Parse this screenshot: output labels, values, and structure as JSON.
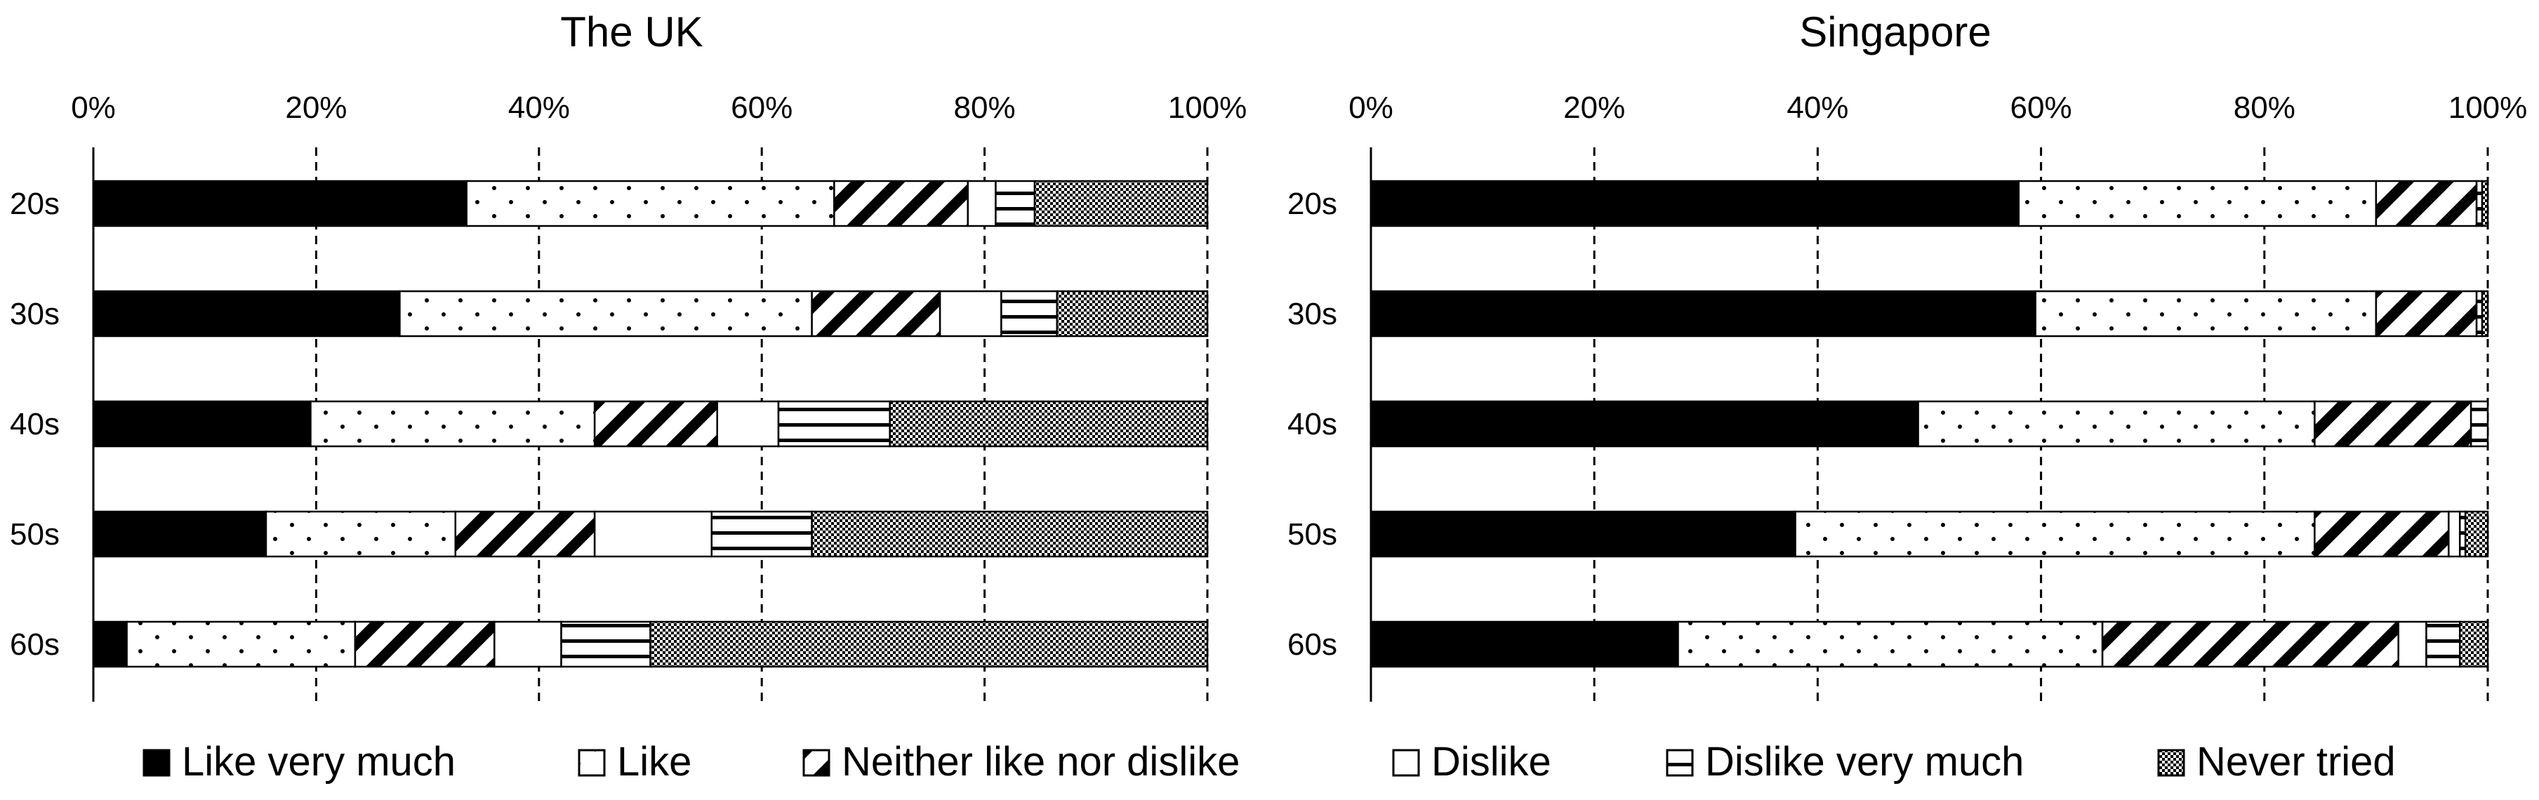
{
  "chart_data": [
    {
      "type": "bar",
      "orientation": "horizontal",
      "stacked": true,
      "title": "The  UK",
      "xlim": [
        0,
        100
      ],
      "x_ticks": [
        "0%",
        "20%",
        "40%",
        "60%",
        "80%",
        "100%"
      ],
      "categories": [
        "20s",
        "30s",
        "40s",
        "50s",
        "60s"
      ],
      "grid": true,
      "series": [
        {
          "name": "Like very much",
          "values": [
            33.5,
            27.5,
            19.5,
            15.5,
            3
          ]
        },
        {
          "name": "Like",
          "values": [
            33,
            37,
            25.5,
            17,
            20.5
          ]
        },
        {
          "name": "Neither like nor dislike",
          "values": [
            12,
            11.5,
            11,
            12.5,
            12.5
          ]
        },
        {
          "name": "Dislike",
          "values": [
            2.5,
            5.5,
            5.5,
            10.5,
            6
          ]
        },
        {
          "name": "Dislike very much",
          "values": [
            3.5,
            5,
            10,
            9,
            8
          ]
        },
        {
          "name": "Never tried",
          "values": [
            15.5,
            13.5,
            28.5,
            35.5,
            50
          ]
        }
      ]
    },
    {
      "type": "bar",
      "orientation": "horizontal",
      "stacked": true,
      "title": "Singapore",
      "xlim": [
        0,
        100
      ],
      "x_ticks": [
        "0%",
        "20%",
        "40%",
        "60%",
        "80%",
        "100%"
      ],
      "categories": [
        "20s",
        "30s",
        "40s",
        "50s",
        "60s"
      ],
      "grid": true,
      "series": [
        {
          "name": "Like very much",
          "values": [
            58,
            59.5,
            49,
            38,
            27.5
          ]
        },
        {
          "name": "Like",
          "values": [
            32,
            30.5,
            35.5,
            46.5,
            38
          ]
        },
        {
          "name": "Neither like nor dislike",
          "values": [
            9,
            9,
            14,
            12,
            26.5
          ]
        },
        {
          "name": "Dislike",
          "values": [
            0,
            0,
            0,
            1,
            2.5
          ]
        },
        {
          "name": "Dislike very much",
          "values": [
            0.5,
            0.5,
            1.5,
            0.5,
            3
          ]
        },
        {
          "name": "Never tried",
          "values": [
            0.5,
            0.5,
            0,
            2,
            2.5
          ]
        }
      ]
    }
  ],
  "legend": {
    "position": "bottom",
    "items": [
      {
        "label": "Like very much",
        "pattern": "solid-black"
      },
      {
        "label": "Like",
        "pattern": "dots"
      },
      {
        "label": "Neither like nor dislike",
        "pattern": "diagonal-stripes"
      },
      {
        "label": "Dislike",
        "pattern": "blank"
      },
      {
        "label": "Dislike very much",
        "pattern": "horizontal-lines"
      },
      {
        "label": "Never tried",
        "pattern": "crosshatch"
      }
    ]
  },
  "colors": {
    "ink": "#000000",
    "background": "#ffffff",
    "grid": "#000000"
  }
}
